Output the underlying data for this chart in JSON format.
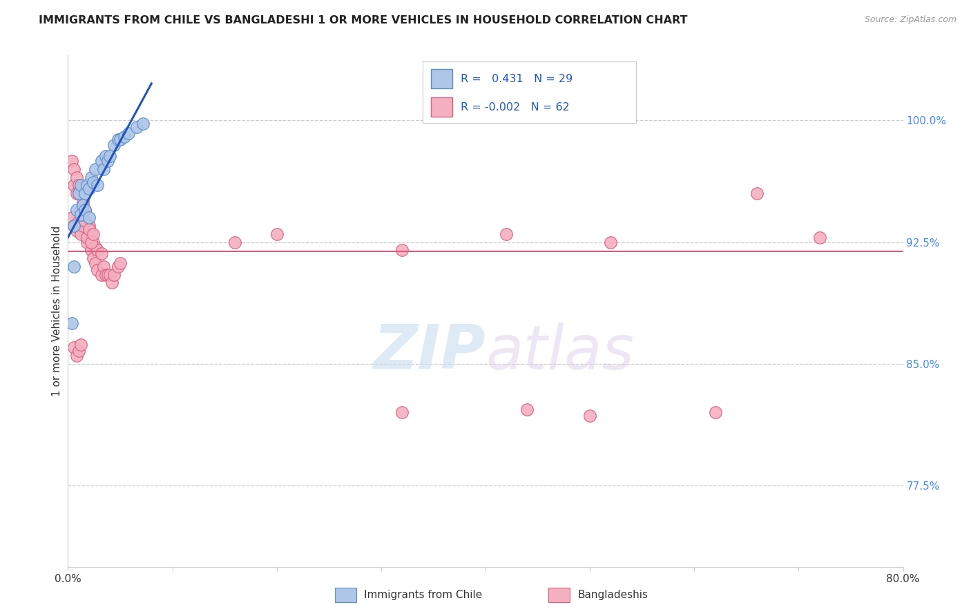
{
  "title": "IMMIGRANTS FROM CHILE VS BANGLADESHI 1 OR MORE VEHICLES IN HOUSEHOLD CORRELATION CHART",
  "source": "Source: ZipAtlas.com",
  "ylabel": "1 or more Vehicles in Household",
  "ytick_values": [
    1.0,
    0.925,
    0.85,
    0.775
  ],
  "ytick_labels": [
    "100.0%",
    "92.5%",
    "85.0%",
    "77.5%"
  ],
  "xlim": [
    0.0,
    0.8
  ],
  "ylim": [
    0.725,
    1.04
  ],
  "legend_chile_R": "0.431",
  "legend_chile_N": "29",
  "legend_bangla_R": "-0.002",
  "legend_bangla_N": "62",
  "chile_color": "#aec6e8",
  "bangla_color": "#f4afc0",
  "chile_edge": "#5b8dc8",
  "bangla_edge": "#d96080",
  "line_chile_color": "#2255bb",
  "line_bangla_color": "#e05878",
  "grid_color": "#cccccc",
  "background_color": "#ffffff",
  "title_color": "#222222",
  "axis_label_color": "#333333",
  "tick_color_right": "#4488ff",
  "source_color": "#999999",
  "chile_x": [
    0.004,
    0.006,
    0.006,
    0.008,
    0.01,
    0.012,
    0.012,
    0.014,
    0.016,
    0.016,
    0.018,
    0.02,
    0.02,
    0.022,
    0.024,
    0.026,
    0.028,
    0.032,
    0.034,
    0.036,
    0.038,
    0.04,
    0.044,
    0.048,
    0.05,
    0.054,
    0.058,
    0.066,
    0.072
  ],
  "chile_y": [
    0.875,
    0.935,
    0.91,
    0.945,
    0.955,
    0.96,
    0.942,
    0.948,
    0.945,
    0.955,
    0.96,
    0.958,
    0.94,
    0.965,
    0.962,
    0.97,
    0.96,
    0.975,
    0.97,
    0.978,
    0.975,
    0.978,
    0.985,
    0.988,
    0.988,
    0.99,
    0.992,
    0.996,
    0.998
  ],
  "bangla_x": [
    0.004,
    0.006,
    0.006,
    0.008,
    0.008,
    0.01,
    0.01,
    0.012,
    0.012,
    0.014,
    0.014,
    0.016,
    0.016,
    0.016,
    0.018,
    0.018,
    0.02,
    0.02,
    0.022,
    0.022,
    0.024,
    0.024,
    0.026,
    0.026,
    0.028,
    0.028,
    0.032,
    0.032,
    0.034,
    0.036,
    0.038,
    0.04,
    0.042,
    0.044,
    0.048,
    0.05,
    0.004,
    0.006,
    0.008,
    0.01,
    0.012,
    0.014,
    0.016,
    0.018,
    0.02,
    0.022,
    0.024,
    0.006,
    0.008,
    0.01,
    0.012,
    0.16,
    0.2,
    0.32,
    0.42,
    0.52,
    0.66,
    0.72,
    0.32,
    0.44,
    0.5,
    0.62
  ],
  "bangla_y": [
    0.975,
    0.97,
    0.96,
    0.965,
    0.955,
    0.96,
    0.955,
    0.958,
    0.945,
    0.95,
    0.94,
    0.945,
    0.935,
    0.93,
    0.935,
    0.925,
    0.935,
    0.928,
    0.93,
    0.92,
    0.925,
    0.915,
    0.922,
    0.912,
    0.92,
    0.908,
    0.918,
    0.905,
    0.91,
    0.905,
    0.905,
    0.905,
    0.9,
    0.905,
    0.91,
    0.912,
    0.94,
    0.935,
    0.932,
    0.938,
    0.93,
    0.935,
    0.938,
    0.928,
    0.933,
    0.925,
    0.93,
    0.86,
    0.855,
    0.858,
    0.862,
    0.925,
    0.93,
    0.92,
    0.93,
    0.925,
    0.955,
    0.928,
    0.82,
    0.822,
    0.818,
    0.82
  ]
}
